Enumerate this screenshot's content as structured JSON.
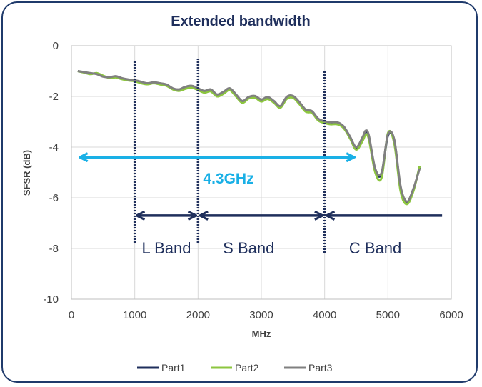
{
  "chart_data": {
    "type": "line",
    "title": "Extended bandwidth",
    "xlabel": "MHz",
    "ylabel": "SFSR (dB)",
    "xlim": [
      0,
      6000
    ],
    "ylim": [
      -10,
      0
    ],
    "x_ticks": [
      0,
      1000,
      2000,
      3000,
      4000,
      5000,
      6000
    ],
    "y_ticks": [
      0,
      -2,
      -4,
      -6,
      -8,
      -10
    ],
    "grid": true,
    "legend_position": "bottom",
    "series": [
      {
        "name": "Part1",
        "color": "#1f2f5c",
        "x": [
          100,
          200,
          300,
          400,
          500,
          600,
          700,
          800,
          900,
          1000,
          1100,
          1200,
          1300,
          1400,
          1500,
          1600,
          1700,
          1800,
          1900,
          2000,
          2100,
          2200,
          2300,
          2400,
          2500,
          2600,
          2700,
          2800,
          2900,
          3000,
          3100,
          3200,
          3300,
          3400,
          3500,
          3600,
          3700,
          3800,
          3900,
          4000,
          4100,
          4200,
          4300,
          4400,
          4500,
          4600,
          4650,
          4700,
          4800,
          4900,
          5000,
          5100,
          5200,
          5300,
          5400,
          5500
        ],
        "y": [
          -1.0,
          -1.05,
          -1.1,
          -1.1,
          -1.2,
          -1.25,
          -1.22,
          -1.3,
          -1.35,
          -1.38,
          -1.45,
          -1.5,
          -1.45,
          -1.5,
          -1.55,
          -1.7,
          -1.75,
          -1.65,
          -1.6,
          -1.7,
          -1.8,
          -1.75,
          -1.95,
          -1.85,
          -1.7,
          -1.95,
          -2.2,
          -2.05,
          -2.0,
          -2.15,
          -2.05,
          -2.2,
          -2.4,
          -2.05,
          -2.0,
          -2.25,
          -2.55,
          -2.6,
          -2.9,
          -3.0,
          -3.05,
          -3.05,
          -3.2,
          -3.6,
          -4.05,
          -3.65,
          -3.4,
          -3.6,
          -4.9,
          -5.05,
          -3.55,
          -3.75,
          -5.6,
          -6.2,
          -5.7,
          -4.8
        ]
      },
      {
        "name": "Part2",
        "color": "#8cc63f",
        "x": [
          100,
          200,
          300,
          400,
          500,
          600,
          700,
          800,
          900,
          1000,
          1100,
          1200,
          1300,
          1400,
          1500,
          1600,
          1700,
          1800,
          1900,
          2000,
          2100,
          2200,
          2300,
          2400,
          2500,
          2600,
          2700,
          2800,
          2900,
          3000,
          3100,
          3200,
          3300,
          3400,
          3500,
          3600,
          3700,
          3800,
          3900,
          4000,
          4100,
          4200,
          4300,
          4400,
          4500,
          4600,
          4650,
          4700,
          4800,
          4900,
          5000,
          5100,
          5200,
          5300,
          5400,
          5500
        ],
        "y": [
          -1.0,
          -1.06,
          -1.12,
          -1.08,
          -1.18,
          -1.27,
          -1.25,
          -1.32,
          -1.37,
          -1.4,
          -1.48,
          -1.52,
          -1.48,
          -1.53,
          -1.58,
          -1.72,
          -1.78,
          -1.7,
          -1.65,
          -1.75,
          -1.85,
          -1.8,
          -2.0,
          -1.9,
          -1.75,
          -2.0,
          -2.25,
          -2.08,
          -2.05,
          -2.2,
          -2.1,
          -2.25,
          -2.45,
          -2.1,
          -2.05,
          -2.3,
          -2.6,
          -2.65,
          -2.95,
          -3.05,
          -3.1,
          -3.1,
          -3.25,
          -3.65,
          -4.1,
          -3.75,
          -3.5,
          -3.7,
          -5.0,
          -5.2,
          -3.45,
          -3.85,
          -5.75,
          -6.25,
          -5.75,
          -4.75
        ]
      },
      {
        "name": "Part3",
        "color": "#808080",
        "x": [
          100,
          200,
          300,
          400,
          500,
          600,
          700,
          800,
          900,
          1000,
          1100,
          1200,
          1300,
          1400,
          1500,
          1600,
          1700,
          1800,
          1900,
          2000,
          2100,
          2200,
          2300,
          2400,
          2500,
          2600,
          2700,
          2800,
          2900,
          3000,
          3100,
          3200,
          3300,
          3400,
          3500,
          3600,
          3700,
          3800,
          3900,
          4000,
          4100,
          4200,
          4300,
          4400,
          4500,
          4600,
          4650,
          4700,
          4800,
          4900,
          5000,
          5100,
          5200,
          5300,
          5400,
          5500
        ],
        "y": [
          -1.0,
          -1.04,
          -1.08,
          -1.12,
          -1.22,
          -1.24,
          -1.2,
          -1.28,
          -1.33,
          -1.36,
          -1.42,
          -1.48,
          -1.44,
          -1.48,
          -1.53,
          -1.68,
          -1.72,
          -1.62,
          -1.58,
          -1.68,
          -1.78,
          -1.72,
          -1.92,
          -1.82,
          -1.68,
          -1.92,
          -2.18,
          -2.02,
          -1.98,
          -2.12,
          -2.02,
          -2.18,
          -2.38,
          -2.02,
          -1.98,
          -2.22,
          -2.52,
          -2.58,
          -2.88,
          -2.98,
          -3.02,
          -3.02,
          -3.18,
          -3.58,
          -4.0,
          -3.6,
          -3.35,
          -3.55,
          -4.85,
          -5.0,
          -3.5,
          -3.7,
          -5.55,
          -6.15,
          -5.65,
          -4.85
        ]
      }
    ],
    "annotations": {
      "span_label": "4.3GHz",
      "span": [
        100,
        4500
      ],
      "span_y": -4.4,
      "band_boundaries": [
        1000,
        2000,
        4000
      ],
      "band_arrow_y": -6.7,
      "band_arrows": [
        [
          1000,
          2000
        ],
        [
          2000,
          4000
        ],
        [
          4000,
          5900
        ]
      ],
      "bands": [
        {
          "label": "L Band",
          "x": 1500
        },
        {
          "label": "S Band",
          "x": 2800
        },
        {
          "label": "C Band",
          "x": 4800
        }
      ],
      "band_label_y": -8.2
    }
  }
}
